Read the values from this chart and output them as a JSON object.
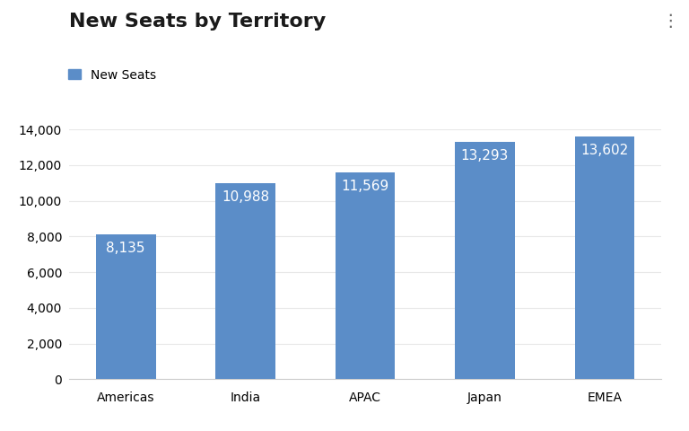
{
  "title": "New Seats by Territory",
  "legend_label": "New Seats",
  "categories": [
    "Americas",
    "India",
    "APAC",
    "Japan",
    "EMEA"
  ],
  "values": [
    8135,
    10988,
    11569,
    13293,
    13602
  ],
  "bar_color": "#5b8dc8",
  "label_color": "#ffffff",
  "background_color": "#ffffff",
  "ylim": [
    0,
    14000
  ],
  "yticks": [
    0,
    2000,
    4000,
    6000,
    8000,
    10000,
    12000,
    14000
  ],
  "title_fontsize": 16,
  "legend_fontsize": 10,
  "tick_fontsize": 10,
  "label_fontsize": 11,
  "bar_width": 0.5,
  "three_dot": "⋮"
}
